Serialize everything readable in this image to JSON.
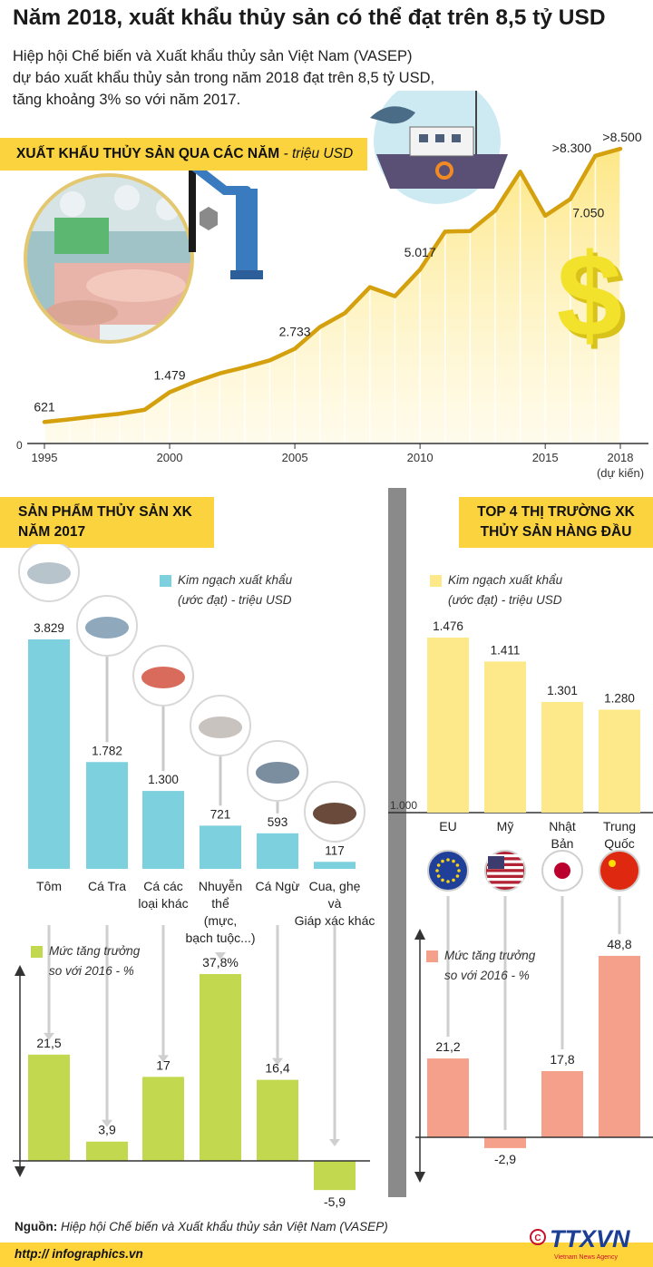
{
  "header": {
    "title": "Năm 2018, xuất khẩu thủy sản có thể đạt trên 8,5 tỷ USD",
    "intro_lines": [
      "Hiệp hội Chế biến và Xuất khẩu thủy sản Việt Nam (VASEP)",
      "dự báo xuất khẩu thủy sản trong năm 2018 đạt trên 8,5 tỷ USD,",
      "tăng khoảng 3% so với năm 2017."
    ]
  },
  "section1": {
    "title": "XUẤT KHẨU THỦY SẢN QUA CÁC NĂM",
    "unit": " - triệu USD"
  },
  "section2": {
    "title_line1": "SẢN PHẨM THỦY SẢN XK",
    "title_line2": "NĂM 2017"
  },
  "section3": {
    "title_line1": "TOP 4 THỊ TRƯỜNG XK",
    "title_line2": "THỦY SẢN HÀNG ĐẦU"
  },
  "legends": {
    "export_line1": "Kim ngạch xuất khẩu",
    "export_line2": "(ước đạt) - triệu USD",
    "growth_line1": "Mức tăng trưởng",
    "growth_line2": "so với 2016 - %"
  },
  "colors": {
    "yellow": "#fbd33e",
    "line_gold": "#d4a00e",
    "blue_bar": "#7dd0dd",
    "green_bar": "#c2d94f",
    "market_bar": "#fde98a",
    "salmon_bar": "#f4a08a"
  },
  "icons": [
    "shrimp-icon",
    "pangasius-icon",
    "fish-icon",
    "octopus-icon",
    "tuna-icon",
    "crab-icon",
    "eu-flag-icon",
    "us-flag-icon",
    "japan-flag-icon",
    "china-flag-icon",
    "dollar-icon",
    "boat-icon"
  ],
  "chart_data": [
    {
      "type": "line",
      "title": "XUẤT KHẨU THỦY SẢN QUA CÁC NĂM - triệu USD",
      "x": [
        1995,
        1996,
        1997,
        1998,
        1999,
        2000,
        2001,
        2002,
        2003,
        2004,
        2005,
        2006,
        2007,
        2008,
        2009,
        2010,
        2011,
        2012,
        2013,
        2014,
        2015,
        2016,
        2017,
        2018
      ],
      "values": [
        621,
        697,
        782,
        858,
        971,
        1479,
        1777,
        2023,
        2200,
        2400,
        2733,
        3358,
        3763,
        4510,
        4250,
        5017,
        6112,
        6131,
        6720,
        7840,
        6570,
        7050,
        8300,
        8500
      ],
      "point_labels": [
        {
          "x": 1995,
          "text": "621"
        },
        {
          "x": 2000,
          "text": "1.479"
        },
        {
          "x": 2005,
          "text": "2.733"
        },
        {
          "x": 2010,
          "text": "5.017"
        },
        {
          "x": 2016,
          "text": "7.050"
        },
        {
          "x": 2017,
          "text": ">8.300"
        },
        {
          "x": 2018,
          "text": ">8.500"
        }
      ],
      "xticks": [
        "1995",
        "2000",
        "2005",
        "2010",
        "2015",
        "2018"
      ],
      "x_note": "(dự kiến)",
      "y_zero_label": "0",
      "ylim": [
        0,
        9000
      ]
    },
    {
      "type": "bar",
      "title": "SẢN PHẨM THỦY SẢN XK NĂM 2017",
      "categories": [
        [
          "Tôm"
        ],
        [
          "Cá Tra"
        ],
        [
          "Cá các",
          "loại khác"
        ],
        [
          "Nhuyễn",
          "thể",
          "(mực,",
          "bạch tuộc...)"
        ],
        [
          "Cá Ngừ"
        ],
        [
          "Cua, ghẹ",
          "và",
          "Giáp xác khác"
        ]
      ],
      "series": [
        {
          "name": "Kim ngạch xuất khẩu (ước đạt) - triệu USD",
          "values": [
            3829,
            1782,
            1300,
            721,
            593,
            117
          ],
          "labels": [
            "3.829",
            "1.782",
            "1.300",
            "721",
            "593",
            "117"
          ]
        },
        {
          "name": "Mức tăng trưởng so với 2016 - %",
          "values": [
            21.5,
            3.9,
            17,
            37.8,
            16.4,
            -5.9
          ],
          "labels": [
            "21,5",
            "3,9",
            "17",
            "37,8%",
            "16,4",
            "-5,9"
          ]
        }
      ]
    },
    {
      "type": "bar",
      "title": "TOP 4 THỊ TRƯỜNG XK THỦY SẢN HÀNG ĐẦU",
      "categories": [
        [
          "EU"
        ],
        [
          "Mỹ"
        ],
        [
          "Nhật",
          "Bản"
        ],
        [
          "Trung",
          "Quốc"
        ]
      ],
      "y_base_label": "1.000",
      "series": [
        {
          "name": "Kim ngạch xuất khẩu (ước đạt) - triệu USD",
          "values": [
            1476,
            1411,
            1301,
            1280
          ],
          "labels": [
            "1.476",
            "1.411",
            "1.301",
            "1.280"
          ]
        },
        {
          "name": "Mức tăng trưởng so với 2016 - %",
          "values": [
            21.2,
            -2.9,
            17.8,
            48.8
          ],
          "labels": [
            "21,2",
            "-2,9",
            "17,8",
            "48,8"
          ]
        }
      ]
    }
  ],
  "footer": {
    "source_label": "Nguồn:",
    "source_text": " Hiệp hội Chế biến và Xuất khẩu thủy sản Việt Nam (VASEP)",
    "url": "http:// infographics.vn",
    "logo_text": "TTXVN",
    "logo_sub": "Vietnam News Agency"
  }
}
